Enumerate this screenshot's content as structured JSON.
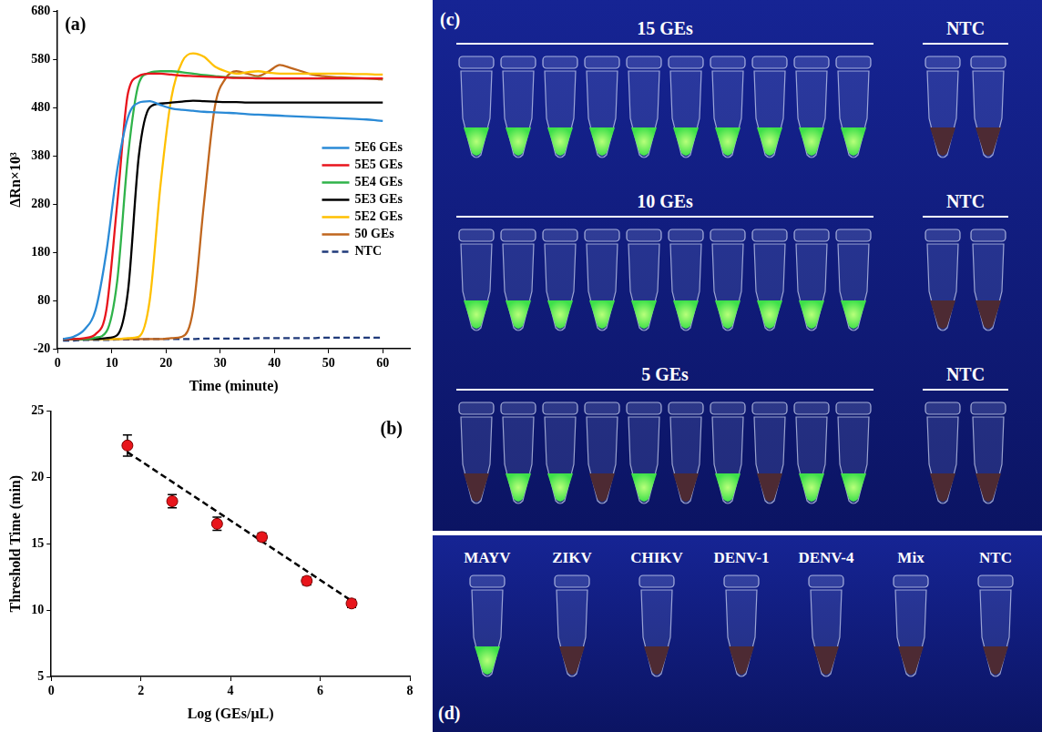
{
  "chart_data": [
    {
      "type": "line",
      "panel": "(a)",
      "x_label": "Time (minute)",
      "y_label": "ΔRn×10³",
      "xlim": [
        0,
        65
      ],
      "xticks": [
        0,
        10,
        20,
        30,
        40,
        50,
        60
      ],
      "ylim": [
        -20,
        680
      ],
      "yticks": [
        -20,
        80,
        180,
        280,
        380,
        480,
        580,
        680
      ],
      "grid": false,
      "legend": "right",
      "x": [
        1,
        3,
        5,
        7,
        9,
        11,
        13,
        15,
        17,
        19,
        21,
        23,
        25,
        27,
        29,
        31,
        33,
        35,
        37,
        39,
        41,
        43,
        45,
        47,
        49,
        51,
        53,
        55,
        57,
        59,
        60
      ],
      "series": [
        {
          "name": "5E6 GEs",
          "color": "#2a8ad6",
          "line_style": "solid",
          "values": [
            0,
            5,
            20,
            60,
            180,
            350,
            460,
            490,
            493,
            485,
            478,
            475,
            473,
            471,
            470,
            469,
            468,
            466,
            465,
            464,
            463,
            462,
            461,
            460,
            459,
            458,
            457,
            456,
            455,
            453,
            452
          ]
        },
        {
          "name": "5E5 GEs",
          "color": "#e8141c",
          "line_style": "solid",
          "values": [
            0,
            0,
            2,
            10,
            60,
            280,
            510,
            545,
            550,
            550,
            548,
            546,
            545,
            544,
            543,
            542,
            541,
            541,
            540,
            540,
            540,
            540,
            540,
            540,
            540,
            540,
            540,
            540,
            540,
            540,
            540
          ]
        },
        {
          "name": "5E4 GEs",
          "color": "#2fb34a",
          "line_style": "solid",
          "values": [
            0,
            0,
            0,
            3,
            15,
            120,
            380,
            530,
            552,
            555,
            555,
            553,
            550,
            547,
            545,
            543,
            542,
            541,
            541,
            540,
            540,
            540,
            540,
            540,
            540,
            540,
            540,
            540,
            540,
            540,
            540
          ]
        },
        {
          "name": "5E3 GEs",
          "color": "#000000",
          "line_style": "solid",
          "values": [
            0,
            0,
            0,
            0,
            2,
            8,
            100,
            380,
            480,
            488,
            490,
            492,
            494,
            493,
            492,
            491,
            491,
            490,
            490,
            490,
            490,
            490,
            490,
            490,
            490,
            490,
            490,
            490,
            490,
            490,
            490
          ]
        },
        {
          "name": "5E2 GEs",
          "color": "#ffc000",
          "line_style": "solid",
          "values": [
            0,
            0,
            0,
            0,
            0,
            0,
            2,
            5,
            80,
            320,
            500,
            575,
            592,
            585,
            565,
            555,
            550,
            553,
            555,
            552,
            550,
            550,
            550,
            550,
            550,
            550,
            550,
            549,
            549,
            548,
            548
          ]
        },
        {
          "name": "50 GEs",
          "color": "#c0661e",
          "line_style": "solid",
          "values": [
            0,
            0,
            0,
            0,
            0,
            0,
            0,
            0,
            0,
            0,
            2,
            5,
            60,
            280,
            480,
            540,
            555,
            550,
            545,
            555,
            568,
            562,
            555,
            548,
            545,
            543,
            542,
            541,
            540,
            539,
            538
          ]
        },
        {
          "name": "NTC",
          "color": "#1f3a7a",
          "line_style": "dashed",
          "values": [
            -3,
            -3,
            -2,
            -2,
            -2,
            -1,
            -1,
            -1,
            0,
            0,
            0,
            0,
            0,
            1,
            1,
            1,
            1,
            1,
            2,
            2,
            2,
            2,
            2,
            2,
            3,
            3,
            3,
            3,
            3,
            3,
            3
          ]
        }
      ]
    },
    {
      "type": "scatter",
      "panel": "(b)",
      "x_label": "Log (GEs/μL)",
      "y_label": "Threshold Time (min)",
      "xlim": [
        0,
        8
      ],
      "xticks": [
        0,
        2,
        4,
        6,
        8
      ],
      "ylim": [
        5,
        25
      ],
      "yticks": [
        5,
        10,
        15,
        20,
        25
      ],
      "grid": false,
      "series": [
        {
          "type": "scatter",
          "color": "#e8151b",
          "marker": "circle",
          "x": [
            1.7,
            2.7,
            3.7,
            4.7,
            5.7,
            6.7
          ],
          "values": [
            22.4,
            18.2,
            16.5,
            15.5,
            12.2,
            10.5
          ],
          "errors": [
            0.8,
            0.5,
            0.5,
            0.3,
            0.3,
            0.3
          ]
        },
        {
          "type": "line",
          "color": "#000000",
          "line_style": "dashed",
          "x": [
            1.7,
            6.7
          ],
          "values": [
            21.9,
            10.7
          ]
        }
      ]
    }
  ],
  "photo_panels": [
    {
      "panel": "(c)",
      "rows": [
        {
          "sample": {
            "title": "15 GEs",
            "positive": [
              true,
              true,
              true,
              true,
              true,
              true,
              true,
              true,
              true,
              true
            ]
          },
          "control": {
            "title": "NTC",
            "positive": [
              false,
              false
            ]
          }
        },
        {
          "sample": {
            "title": "10 GEs",
            "positive": [
              true,
              true,
              true,
              true,
              true,
              true,
              true,
              true,
              true,
              true
            ]
          },
          "control": {
            "title": "NTC",
            "positive": [
              false,
              false
            ]
          }
        },
        {
          "sample": {
            "title": "5 GEs",
            "positive": [
              false,
              true,
              true,
              false,
              true,
              false,
              true,
              false,
              true,
              true
            ]
          },
          "control": {
            "title": "NTC",
            "positive": [
              false,
              false
            ]
          }
        }
      ]
    },
    {
      "panel": "(d)",
      "tubes": [
        {
          "name": "MAYV",
          "positive": true
        },
        {
          "name": "ZIKV",
          "positive": false
        },
        {
          "name": "CHIKV",
          "positive": false
        },
        {
          "name": "DENV-1",
          "positive": false
        },
        {
          "name": "DENV-4",
          "positive": false
        },
        {
          "name": "Mix",
          "positive": false
        },
        {
          "name": "NTC",
          "positive": false
        }
      ]
    }
  ]
}
